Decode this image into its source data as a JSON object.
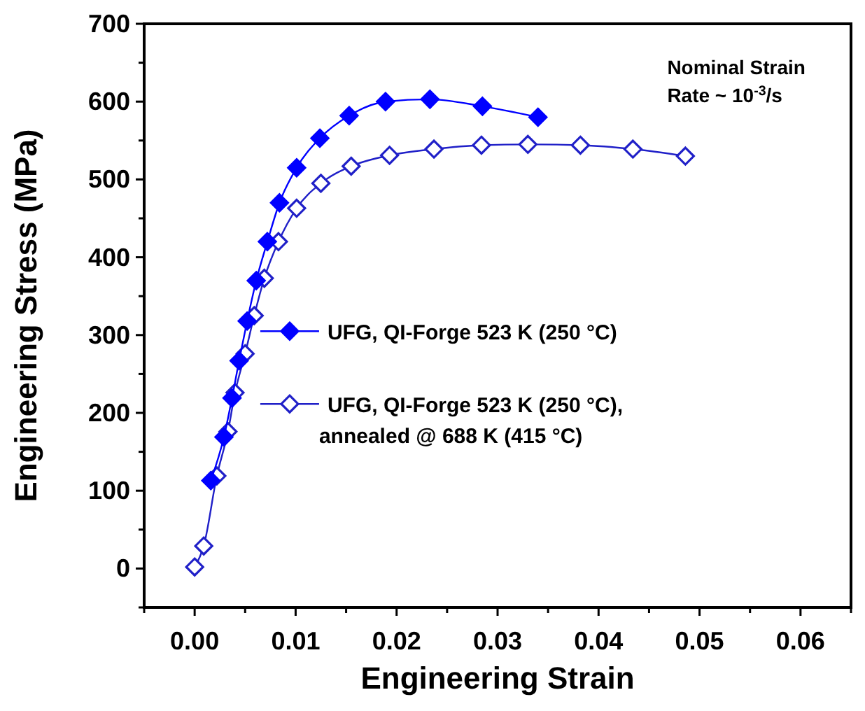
{
  "chart_data": {
    "type": "line",
    "xlabel": "Engineering Strain",
    "ylabel": "Engineering Stress (MPa)",
    "xlim": [
      -0.005,
      0.065
    ],
    "xticks": [
      {
        "value": -0.005,
        "label": null
      },
      {
        "value": 0,
        "label": "0.00"
      },
      {
        "value": 0.005,
        "label": null
      },
      {
        "value": 0.01,
        "label": "0.01"
      },
      {
        "value": 0.015,
        "label": null
      },
      {
        "value": 0.02,
        "label": "0.02"
      },
      {
        "value": 0.025,
        "label": null
      },
      {
        "value": 0.03,
        "label": "0.03"
      },
      {
        "value": 0.035,
        "label": null
      },
      {
        "value": 0.04,
        "label": "0.04"
      },
      {
        "value": 0.045,
        "label": null
      },
      {
        "value": 0.05,
        "label": "0.05"
      },
      {
        "value": 0.055,
        "label": null
      },
      {
        "value": 0.06,
        "label": "0.06"
      },
      {
        "value": 0.065,
        "label": null
      }
    ],
    "ylim": [
      -50,
      700
    ],
    "yticks": [
      {
        "value": -50,
        "label": null
      },
      0,
      {
        "value": 50,
        "label": null
      },
      100,
      {
        "value": 150,
        "label": null
      },
      200,
      {
        "value": 250,
        "label": null
      },
      300,
      {
        "value": 350,
        "label": null
      },
      400,
      {
        "value": 450,
        "label": null
      },
      500,
      {
        "value": 550,
        "label": null
      },
      600,
      {
        "value": 650,
        "label": null
      },
      700
    ],
    "grid": false,
    "legend": "bottom left",
    "annotations": [
      "Nominal Strain",
      "Rate ~ 10$^{-3}$/s"
    ],
    "series": [
      {
        "name": "UFG, QI-Forge 523 K (250 °C)",
        "color": "#0000ff",
        "marker": "diamond",
        "x": [
          0.0016,
          0.0029,
          0.0037,
          0.0044,
          0.0052,
          0.0061,
          0.0072,
          0.0084,
          0.0101,
          0.0124,
          0.0153,
          0.0189,
          0.0233,
          0.0285,
          0.034
        ],
        "values": [
          113,
          169,
          219,
          267,
          318,
          370,
          420,
          470,
          515,
          553,
          582,
          600,
          603,
          594,
          580
        ]
      },
      {
        "name": "UFG, QI-Forge 523 K (250 °C), annealed @ 688 K (415 °C)",
        "color": "#2020c8",
        "marker": "diamond-open",
        "x": [
          0,
          0.0009,
          0.0022,
          0.0033,
          0.004,
          0.005,
          0.0059,
          0.0069,
          0.0083,
          0.0101,
          0.0125,
          0.0155,
          0.0193,
          0.0237,
          0.0284,
          0.033,
          0.0382,
          0.0434,
          0.0486
        ],
        "values": [
          2,
          29,
          119,
          176,
          226,
          276,
          325,
          373,
          420,
          463,
          495,
          517,
          531,
          539,
          544,
          545,
          544,
          539,
          530
        ]
      }
    ]
  }
}
